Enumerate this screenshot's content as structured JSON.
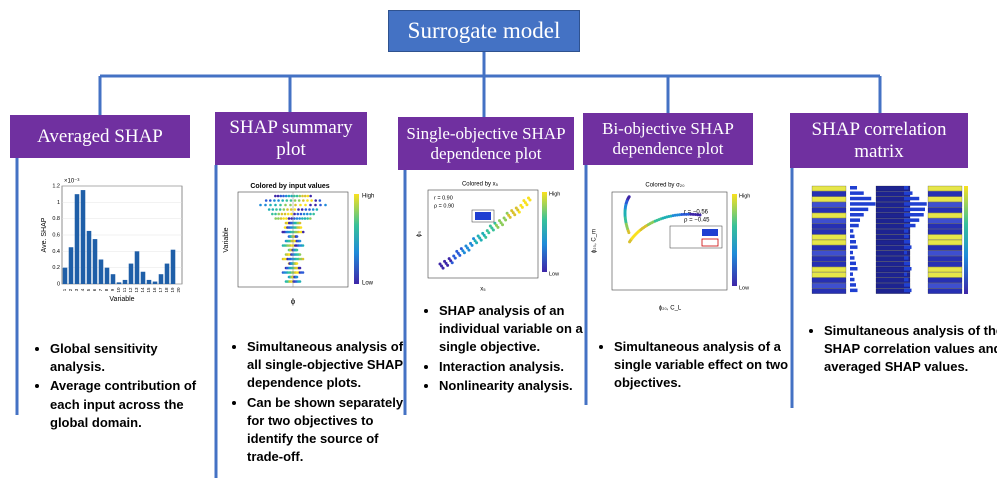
{
  "title": "Surrogate model",
  "columns": [
    {
      "header": "Averaged SHAP",
      "figure": {
        "ylabel": "Ave. SHAP",
        "xlabel": "Variable",
        "exponent": "×10⁻³",
        "categories": [
          "1",
          "2",
          "3",
          "4",
          "5",
          "6",
          "7",
          "8",
          "9",
          "10",
          "11",
          "12",
          "13",
          "14",
          "15",
          "16",
          "17",
          "18",
          "19",
          "20"
        ],
        "values": [
          0.2,
          0.45,
          1.1,
          1.15,
          0.65,
          0.55,
          0.3,
          0.2,
          0.12,
          0.02,
          0.05,
          0.25,
          0.4,
          0.15,
          0.05,
          0.03,
          0.12,
          0.25,
          0.42,
          0.0
        ],
        "ylim": [
          0,
          1.2
        ],
        "yticks": [
          0,
          0.2,
          0.4,
          0.6,
          0.8,
          1,
          1.2
        ],
        "color": "#1f5fa8"
      },
      "bullets": [
        "Global sensitivity analysis.",
        "Average contribution of each input across the global domain."
      ]
    },
    {
      "header": "SHAP summary plot",
      "figure": {
        "title": "Colored by input values",
        "high": "High",
        "low": "Low",
        "ylabel": "Variable",
        "xlabel": "ϕ"
      },
      "bullets": [
        "Simultaneous analysis of all single-objective SHAP dependence plots.",
        "Can be shown separately for two objectives to identify the source of trade-off."
      ]
    },
    {
      "header": "Single-objective SHAP dependence plot",
      "figure": {
        "title": "Colored by x₅",
        "high": "High",
        "low": "Low",
        "xlabel": "x₅",
        "ylabel": "ϕ₅",
        "r": "r = 0.90",
        "rho": "ρ = 0.90"
      },
      "bullets": [
        "SHAP analysis of an individual variable on a single objective.",
        "Interaction analysis.",
        "Nonlinearity analysis."
      ]
    },
    {
      "header": "Bi-objective SHAP dependence plot",
      "figure": {
        "title": "Colored by σ₂₀",
        "high": "High",
        "low": "Low",
        "xlabel": "ϕ₂₀, C_L",
        "ylabel": "ϕ₂₀, C_m",
        "r": "r = −0.56",
        "rho": "ρ = −0.45"
      },
      "bullets": [
        "Simultaneous analysis of a single variable effect on two objectives."
      ]
    },
    {
      "header": "SHAP correlation matrix",
      "bullets": [
        "Simultaneous analysis of the SHAP correlation values and averaged SHAP values."
      ]
    }
  ]
}
